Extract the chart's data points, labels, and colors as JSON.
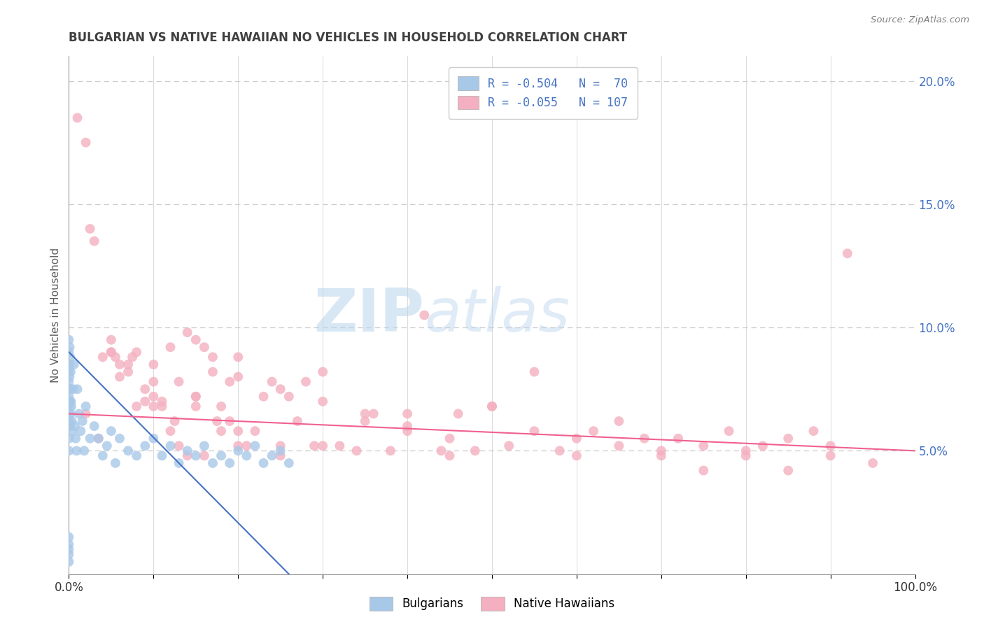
{
  "title": "BULGARIAN VS NATIVE HAWAIIAN NO VEHICLES IN HOUSEHOLD CORRELATION CHART",
  "source_text": "Source: ZipAtlas.com",
  "ylabel": "No Vehicles in Household",
  "xlim": [
    0,
    100
  ],
  "ylim": [
    0,
    21
  ],
  "x_tick_positions": [
    0,
    10,
    20,
    30,
    40,
    50,
    60,
    70,
    80,
    90,
    100
  ],
  "x_tick_labels": [
    "0.0%",
    "",
    "",
    "",
    "",
    "",
    "",
    "",
    "",
    "",
    "100.0%"
  ],
  "y_ticks_right": [
    5,
    10,
    15,
    20
  ],
  "y_tick_labels_right": [
    "5.0%",
    "10.0%",
    "15.0%",
    "20.0%"
  ],
  "bulgarian_color": "#a8c8e8",
  "native_hawaiian_color": "#f4b0c0",
  "bulgarian_line_color": "#4472c4",
  "native_hawaiian_line_color": "#f06090",
  "legend_line1": "R = -0.504   N =  70",
  "legend_line2": "R = -0.055   N = 107",
  "watermark_zip": "ZIP",
  "watermark_atlas": "atlas",
  "background_color": "#ffffff",
  "grid_color": "#cccccc",
  "title_color": "#404040",
  "axis_label_color": "#606060",
  "right_axis_color": "#4472c4",
  "source_color": "#808080",
  "bulgarian_scatter_x": [
    0.0,
    0.0,
    0.0,
    0.0,
    0.0,
    0.0,
    0.0,
    0.0,
    0.0,
    0.05,
    0.05,
    0.05,
    0.05,
    0.08,
    0.1,
    0.1,
    0.1,
    0.1,
    0.15,
    0.15,
    0.2,
    0.2,
    0.25,
    0.3,
    0.35,
    0.4,
    0.5,
    0.6,
    0.7,
    0.8,
    0.9,
    1.0,
    1.2,
    1.4,
    1.6,
    1.8,
    2.0,
    2.5,
    3.0,
    3.5,
    4.0,
    4.5,
    5.0,
    5.5,
    6.0,
    7.0,
    8.0,
    9.0,
    10.0,
    11.0,
    12.0,
    13.0,
    14.0,
    15.0,
    16.0,
    17.0,
    18.0,
    19.0,
    20.0,
    21.0,
    22.0,
    23.0,
    24.0,
    25.0,
    26.0,
    0.0,
    0.0,
    0.0,
    0.0,
    0.0
  ],
  "bulgarian_scatter_y": [
    6.5,
    7.2,
    7.8,
    8.3,
    9.0,
    9.5,
    6.0,
    5.5,
    5.0,
    7.0,
    7.5,
    6.8,
    6.2,
    8.0,
    9.2,
    8.5,
    7.5,
    6.0,
    8.8,
    7.0,
    8.2,
    6.5,
    7.0,
    6.8,
    6.2,
    5.8,
    7.5,
    8.5,
    6.0,
    5.5,
    5.0,
    7.5,
    6.5,
    5.8,
    6.2,
    5.0,
    6.8,
    5.5,
    6.0,
    5.5,
    4.8,
    5.2,
    5.8,
    4.5,
    5.5,
    5.0,
    4.8,
    5.2,
    5.5,
    4.8,
    5.2,
    4.5,
    5.0,
    4.8,
    5.2,
    4.5,
    4.8,
    4.5,
    5.0,
    4.8,
    5.2,
    4.5,
    4.8,
    5.0,
    4.5,
    1.0,
    1.5,
    0.5,
    0.8,
    1.2
  ],
  "native_hawaiian_scatter_x": [
    1.0,
    2.0,
    2.5,
    3.0,
    4.0,
    5.0,
    5.0,
    6.0,
    6.0,
    7.0,
    7.0,
    8.0,
    8.0,
    9.0,
    9.0,
    10.0,
    10.0,
    11.0,
    11.0,
    12.0,
    12.0,
    13.0,
    13.0,
    14.0,
    14.0,
    15.0,
    15.0,
    16.0,
    16.0,
    17.0,
    17.0,
    18.0,
    18.0,
    19.0,
    19.0,
    20.0,
    20.0,
    21.0,
    22.0,
    23.0,
    24.0,
    25.0,
    26.0,
    27.0,
    28.0,
    29.0,
    30.0,
    32.0,
    34.0,
    36.0,
    38.0,
    40.0,
    42.0,
    44.0,
    46.0,
    48.0,
    50.0,
    52.0,
    55.0,
    58.0,
    60.0,
    62.0,
    65.0,
    68.0,
    70.0,
    72.0,
    75.0,
    78.0,
    80.0,
    82.0,
    85.0,
    88.0,
    90.0,
    92.0,
    2.0,
    3.5,
    5.5,
    7.5,
    10.0,
    12.5,
    15.0,
    17.5,
    20.0,
    25.0,
    30.0,
    35.0,
    40.0,
    45.0,
    50.0,
    55.0,
    60.0,
    65.0,
    70.0,
    75.0,
    80.0,
    85.0,
    90.0,
    95.0,
    5.0,
    10.0,
    15.0,
    20.0,
    25.0,
    30.0,
    35.0,
    40.0,
    45.0
  ],
  "native_hawaiian_scatter_y": [
    18.5,
    17.5,
    14.0,
    13.5,
    8.8,
    9.5,
    9.0,
    8.5,
    8.0,
    8.5,
    8.2,
    9.0,
    6.8,
    7.5,
    7.0,
    7.8,
    7.2,
    7.0,
    6.8,
    9.2,
    5.8,
    7.8,
    5.2,
    9.8,
    4.8,
    7.2,
    6.8,
    9.2,
    4.8,
    8.2,
    8.8,
    6.8,
    5.8,
    6.2,
    7.8,
    5.8,
    5.2,
    5.2,
    5.8,
    7.2,
    7.8,
    4.8,
    7.2,
    6.2,
    7.8,
    5.2,
    8.2,
    5.2,
    5.0,
    6.5,
    5.0,
    6.5,
    10.5,
    5.0,
    6.5,
    5.0,
    6.8,
    5.2,
    8.2,
    5.0,
    5.5,
    5.8,
    6.2,
    5.5,
    5.0,
    5.5,
    5.2,
    5.8,
    5.0,
    5.2,
    5.5,
    5.8,
    5.2,
    13.0,
    6.5,
    5.5,
    8.8,
    8.8,
    6.8,
    6.2,
    7.2,
    6.2,
    8.8,
    5.2,
    5.2,
    6.2,
    5.8,
    4.8,
    6.8,
    5.8,
    4.8,
    5.2,
    4.8,
    4.2,
    4.8,
    4.2,
    4.8,
    4.5,
    9.0,
    8.5,
    9.5,
    8.0,
    7.5,
    7.0,
    6.5,
    6.0,
    5.5
  ]
}
